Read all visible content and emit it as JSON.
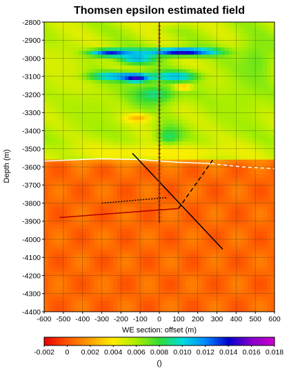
{
  "chart_data": {
    "type": "heatmap",
    "title": "Thomsen epsilon estimated field",
    "xlabel": "WE section: offset (m)",
    "ylabel": "Depth (m)",
    "xlim": [
      -600,
      600
    ],
    "ylim": [
      -4400,
      -2800
    ],
    "x_ticks": [
      -600,
      -500,
      -400,
      -300,
      -200,
      -100,
      0,
      100,
      200,
      300,
      400,
      500,
      600
    ],
    "y_ticks": [
      -2800,
      -2900,
      -3000,
      -3100,
      -3200,
      -3300,
      -3400,
      -3500,
      -3600,
      -3700,
      -3800,
      -3900,
      -4000,
      -4100,
      -4200,
      -4300,
      -4400
    ],
    "grid": true,
    "colorbar": {
      "min": -0.002,
      "max": 0.018,
      "ticks": [
        -0.002,
        0,
        0.002,
        0.004,
        0.006,
        0.008,
        0.01,
        0.012,
        0.014,
        0.016,
        0.018
      ],
      "tick_labels": [
        "-0.002",
        "0",
        "0.002",
        "0.004",
        "0.006",
        "0.008",
        "0.010",
        "0.012",
        "0.014",
        "0.016",
        "0.018"
      ],
      "unit_label": "()",
      "colors": [
        "#e60000",
        "#ff5500",
        "#ffa000",
        "#ffee00",
        "#aaee00",
        "#33dd33",
        "#00dddd",
        "#0088ff",
        "#0000cc",
        "#8800cc",
        "#cc00cc"
      ]
    },
    "background_value": 0.0005,
    "anomalies": [
      {
        "x": 0,
        "y": -2815,
        "rx": 220,
        "ry": 18,
        "v": 0.0045
      },
      {
        "x": -250,
        "y": -2970,
        "rx": 160,
        "ry": 25,
        "v": 0.014
      },
      {
        "x": 120,
        "y": -2965,
        "rx": 220,
        "ry": 25,
        "v": 0.015
      },
      {
        "x": -120,
        "y": -3000,
        "rx": 120,
        "ry": 40,
        "v": 0.011
      },
      {
        "x": -230,
        "y": -3100,
        "rx": 200,
        "ry": 30,
        "v": 0.012
      },
      {
        "x": -120,
        "y": -3110,
        "rx": 80,
        "ry": 25,
        "v": 0.016
      },
      {
        "x": 80,
        "y": -3100,
        "rx": 150,
        "ry": 35,
        "v": 0.011
      },
      {
        "x": 120,
        "y": -3160,
        "rx": 60,
        "ry": 20,
        "v": 0.001
      },
      {
        "x": -30,
        "y": -3200,
        "rx": 150,
        "ry": 70,
        "v": 0.009
      },
      {
        "x": -120,
        "y": -3330,
        "rx": 90,
        "ry": 30,
        "v": 0.002
      },
      {
        "x": 50,
        "y": -3440,
        "rx": 80,
        "ry": 70,
        "v": 0.009
      },
      {
        "x": -350,
        "y": -3300,
        "rx": 200,
        "ry": 180,
        "v": 0.006
      },
      {
        "x": 400,
        "y": -3250,
        "rx": 200,
        "ry": 200,
        "v": 0.006
      },
      {
        "x": -500,
        "y": -3050,
        "rx": 150,
        "ry": 200,
        "v": 0.005
      },
      {
        "x": 500,
        "y": -3020,
        "rx": 120,
        "ry": 180,
        "v": 0.007
      },
      {
        "x": 0,
        "y": -3520,
        "rx": 600,
        "ry": 60,
        "v": 0.004
      }
    ],
    "transition_depth": -3560,
    "overlay_lines": [
      {
        "name": "",
        "color": "#ffffff",
        "dash": "",
        "points": [
          [
            -600,
            -3568
          ],
          [
            -300,
            -3555
          ],
          [
            -100,
            -3560
          ],
          [
            100,
            -3575
          ],
          [
            270,
            -3582
          ]
        ]
      },
      {
        "name": "",
        "color": "#ffffff",
        "dash": "5,4",
        "points": [
          [
            270,
            -3582
          ],
          [
            430,
            -3600
          ],
          [
            600,
            -3610
          ]
        ]
      },
      {
        "name": "",
        "color": "#000000",
        "dash": "",
        "points": [
          [
            -140,
            -3525
          ],
          [
            330,
            -4055
          ]
        ]
      },
      {
        "name": "",
        "color": "#000000",
        "dash": "6,4",
        "points": [
          [
            100,
            -3830
          ],
          [
            280,
            -3560
          ]
        ]
      },
      {
        "name": "",
        "color": "#000000",
        "dash": "2,2",
        "points": [
          [
            -300,
            -3800
          ],
          [
            40,
            -3770
          ]
        ]
      },
      {
        "name": "",
        "color": "#b00000",
        "dash": "",
        "points": [
          [
            -520,
            -3880
          ],
          [
            100,
            -3830
          ]
        ]
      },
      {
        "name": "",
        "color": "#7a2a00",
        "dash": "",
        "points": [
          [
            0,
            -2800
          ],
          [
            0,
            -3910
          ]
        ]
      }
    ]
  }
}
